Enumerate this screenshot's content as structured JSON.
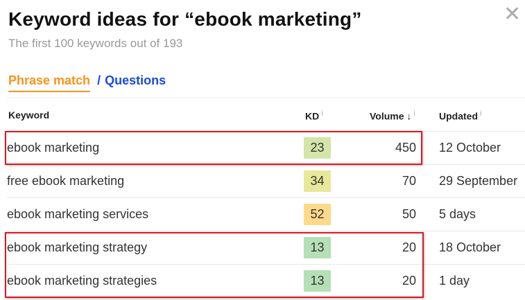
{
  "header": {
    "title": "Keyword ideas for “ebook marketing”",
    "subtitle": "The first 100 keywords out of 193",
    "close_icon": "close-icon"
  },
  "tabs": {
    "active": "Phrase match",
    "separator": "/",
    "other": "Questions"
  },
  "columns": {
    "keyword": "Keyword",
    "kd": "KD",
    "volume": "Volume ↓",
    "updated": "Updated",
    "info": "i"
  },
  "rows": [
    {
      "keyword": "ebook marketing",
      "kd": "23",
      "kd_color": "#d4e5a8",
      "volume": "450",
      "updated": "12 October",
      "highlighted": true
    },
    {
      "keyword": "free ebook marketing",
      "kd": "34",
      "kd_color": "#e8e89a",
      "volume": "70",
      "updated": "29 September",
      "highlighted": false
    },
    {
      "keyword": "ebook marketing services",
      "kd": "52",
      "kd_color": "#fdd98a",
      "volume": "50",
      "updated": "5 days",
      "highlighted": false
    },
    {
      "keyword": "ebook marketing strategy",
      "kd": "13",
      "kd_color": "#b5dfb5",
      "volume": "20",
      "updated": "18 October",
      "highlighted": true
    },
    {
      "keyword": "ebook marketing strategies",
      "kd": "13",
      "kd_color": "#b5dfb5",
      "volume": "20",
      "updated": "1 day",
      "highlighted": true
    }
  ],
  "colors": {
    "accent": "#f7941d",
    "link": "#1a4bd9",
    "highlight": "#e0141e"
  }
}
